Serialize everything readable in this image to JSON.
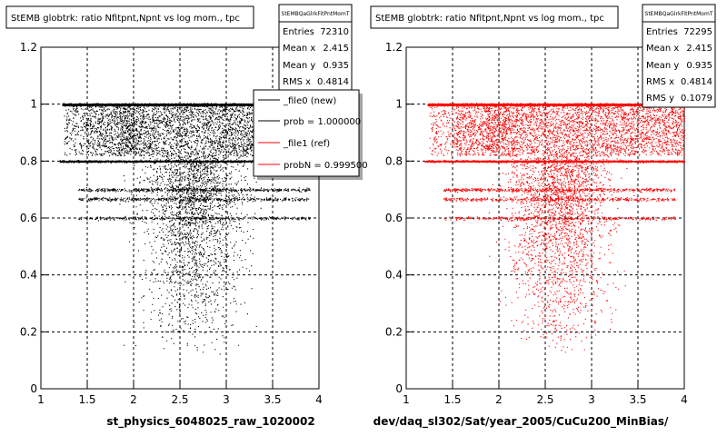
{
  "footer_text": "",
  "chart_data": [
    {
      "type": "scatter",
      "title": "StEMB globtrk: ratio Nfitpnt,Npnt vs log mom., tpc",
      "stats": {
        "name": "StEMBQaGlrkFitPntMomT",
        "rows": [
          {
            "label": "Entries",
            "value": "72310"
          },
          {
            "label": "Mean x",
            "value": "2.415"
          },
          {
            "label": "Mean y",
            "value": "0.935"
          },
          {
            "label": "RMS x",
            "value": "0.4814"
          }
        ]
      },
      "legend": {
        "placement": "top-right",
        "entries": [
          {
            "label": "_file0 (new)",
            "color": "#000000"
          },
          {
            "label": "prob = 1.000000",
            "color": "#000000"
          },
          {
            "label": "_file1 (ref)",
            "color": "#ff0000"
          },
          {
            "label": "probN = 0.999500",
            "color": "#ff0000"
          }
        ]
      },
      "xlabel": "st_physics_6048025_raw_1020002",
      "ylabel": "",
      "xlim": [
        1,
        4
      ],
      "ylim": [
        0,
        1.2
      ],
      "xticks": [
        "1",
        "1.5",
        "2",
        "2.5",
        "3",
        "3.5",
        "4"
      ],
      "yticks": [
        "0",
        "0.2",
        "0.4",
        "0.6",
        "0.8",
        "1",
        "1.2"
      ],
      "grid": true,
      "marker_color": "#000000",
      "x_extent": [
        1.2,
        3.9
      ],
      "bands": [
        1.0,
        0.8,
        0.7,
        0.667,
        0.6
      ]
    },
    {
      "type": "scatter",
      "title": "StEMB globtrk: ratio Nfitpnt,Npnt vs log mom., tpc",
      "stats": {
        "name": "StEMBQaGlrkFitPntMomT",
        "rows": [
          {
            "label": "Entries",
            "value": "72295"
          },
          {
            "label": "Mean x",
            "value": "2.415"
          },
          {
            "label": "Mean y",
            "value": "0.935"
          },
          {
            "label": "RMS x",
            "value": "0.4814"
          },
          {
            "label": "RMS y",
            "value": "0.1079"
          }
        ]
      },
      "xlabel": "dev/daq_sl302/Sat/year_2005/CuCu200_MinBias/",
      "ylabel": "",
      "xlim": [
        1,
        4
      ],
      "ylim": [
        0,
        1.2
      ],
      "xticks": [
        "1",
        "1.5",
        "2",
        "2.5",
        "3",
        "3.5",
        "4"
      ],
      "yticks": [
        "0",
        "0.2",
        "0.4",
        "0.6",
        "0.8",
        "1",
        "1.2"
      ],
      "grid": true,
      "marker_color": "#ff0000",
      "x_extent": [
        1.2,
        4.0
      ],
      "bands": [
        1.0,
        0.8,
        0.7,
        0.667,
        0.6
      ]
    }
  ]
}
